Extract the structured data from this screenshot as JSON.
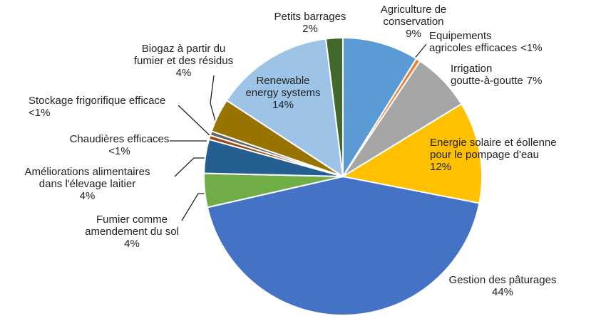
{
  "chart_data": {
    "type": "pie",
    "categories": [
      "Agriculture de\nconservation",
      "Equipements\nagricoles efficaces",
      "Irrigation\ngoutte-à-goutte",
      "Energie solaire et éollenne\npour le pompage d'eau",
      "Gestion des pâturages",
      "Fumier comme\namendement du sol",
      "Améliorations alimentaires\ndans l'élevage laitier",
      "Chaudières efficaces",
      "Stockage frigorifique efficace",
      "Biogaz à partir du\nfumier et des résidus",
      "Renewable\nenergy systems",
      "Petits barrages"
    ],
    "values": [
      9,
      0.5,
      7,
      12,
      44,
      4,
      4,
      0.5,
      0.5,
      4,
      14,
      2
    ],
    "value_labels": [
      "9%",
      "<1%",
      "7%",
      "12%",
      "44%",
      "4%",
      "4%",
      "<1%",
      "<1%",
      "4%",
      "14%",
      "2%"
    ],
    "colors": [
      "#5b9bd5",
      "#ed7d31",
      "#a5a5a5",
      "#ffc000",
      "#4472c4",
      "#70ad47",
      "#255e91",
      "#9e480e",
      "#636363",
      "#997300",
      "#9dc3e6",
      "#43682b"
    ]
  }
}
